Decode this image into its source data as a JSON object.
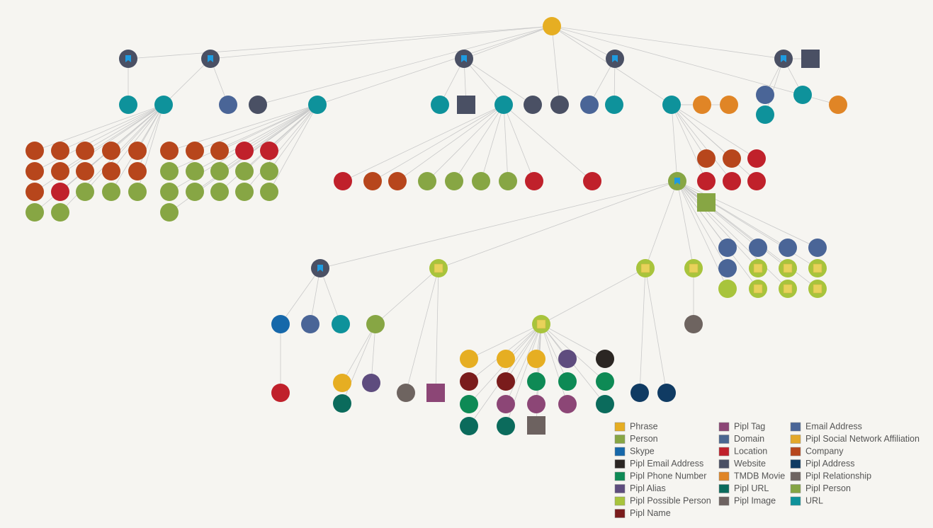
{
  "legend": [
    {
      "label": "Phrase",
      "color": "#e6ae22"
    },
    {
      "label": "Person",
      "color": "#87a644"
    },
    {
      "label": "Skype",
      "color": "#1668aa"
    },
    {
      "label": "Pipl Email Address",
      "color": "#2b2623"
    },
    {
      "label": "Pipl Phone Number",
      "color": "#0e8a55"
    },
    {
      "label": "Pipl Alias",
      "color": "#5e4c7e"
    },
    {
      "label": "Pipl Possible Person",
      "color": "#a8c43c"
    },
    {
      "label": "Pipl Name",
      "color": "#7a1c1c"
    },
    {
      "label": "Pipl Tag",
      "color": "#8c4676"
    },
    {
      "label": "Domain",
      "color": "#4a6791"
    },
    {
      "label": "Location",
      "color": "#c0212b"
    },
    {
      "label": "Website",
      "color": "#4a5064"
    },
    {
      "label": "TMDB Movie",
      "color": "#e08526"
    },
    {
      "label": "Pipl URL",
      "color": "#0b6b5c"
    },
    {
      "label": "Pipl Image",
      "color": "#6d6260"
    },
    {
      "label": "Email Address",
      "color": "#4a6597"
    },
    {
      "label": "Pipl Social Network Affiliation",
      "color": "#e3a82a"
    },
    {
      "label": "Company",
      "color": "#b7461c"
    },
    {
      "label": "Pipl Address",
      "color": "#103b63"
    },
    {
      "label": "Pipl Relationship",
      "color": "#6e6460"
    },
    {
      "label": "Pipl Person",
      "color": "#85a544"
    },
    {
      "label": "URL",
      "color": "#0e929b"
    }
  ]
}
